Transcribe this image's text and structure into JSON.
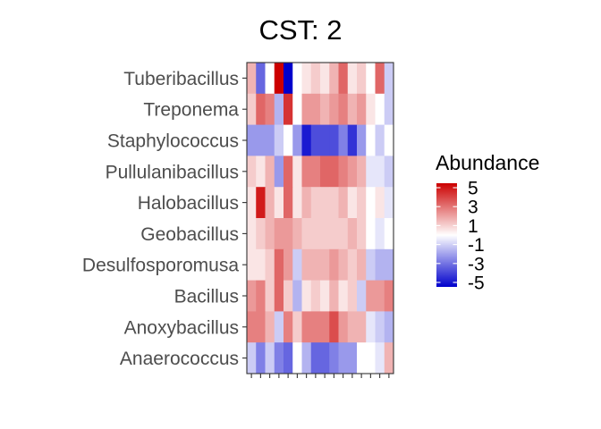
{
  "chart_data": {
    "type": "heatmap",
    "title": "CST: 2",
    "xlabel": "",
    "ylabel": "",
    "rows": [
      "Tuberibacillus",
      "Treponema",
      "Staphylococcus",
      "Pullulanibacillus",
      "Halobacillus",
      "Geobacillus",
      "Desulfosporomusa",
      "Bacillus",
      "Anoxybacillus",
      "Anaerococcus"
    ],
    "n_columns": 16,
    "x_tick_labels_shown": false,
    "values": [
      [
        1.5,
        -3,
        0,
        5,
        -5,
        0,
        0.5,
        1,
        0.5,
        1.5,
        3,
        0.5,
        1,
        0,
        3,
        -1
      ],
      [
        1,
        3,
        2.5,
        -1.5,
        4,
        0,
        2,
        2,
        1.5,
        2,
        2.5,
        1.5,
        2,
        0.5,
        0,
        -1
      ],
      [
        -2,
        -2,
        -2,
        -1,
        0,
        -2,
        -4.5,
        -3.5,
        -3.5,
        -3.5,
        -2.5,
        -4,
        -2,
        0,
        -1,
        0
      ],
      [
        1,
        0.5,
        1.5,
        -2,
        3,
        0.5,
        2.5,
        2.5,
        3,
        3,
        2.5,
        2,
        1.5,
        -0.5,
        -0.5,
        -1
      ],
      [
        0.5,
        4.5,
        1.5,
        0.5,
        3,
        0.5,
        1.5,
        1,
        1,
        1,
        1.5,
        0.5,
        1,
        0,
        0.5,
        -0.5
      ],
      [
        0.5,
        1,
        1.5,
        2,
        2,
        1.5,
        1,
        1,
        1,
        1,
        1,
        1.5,
        1,
        0,
        -0.5,
        0
      ],
      [
        0.5,
        0.5,
        1,
        3,
        2,
        -1,
        1.5,
        1.5,
        1.5,
        2,
        1.5,
        1,
        1.5,
        -1,
        -1.5,
        -1.5
      ],
      [
        2,
        2.5,
        1,
        3,
        1,
        -1.5,
        0.5,
        1,
        0.5,
        1.5,
        0.5,
        1,
        -1,
        2,
        2,
        2.5
      ],
      [
        2.5,
        2.5,
        1.5,
        -1,
        2.5,
        1,
        2.5,
        2.5,
        2.5,
        3.5,
        2,
        1.5,
        1.5,
        -0.5,
        -1,
        -1.5
      ],
      [
        -1,
        -2.5,
        -1,
        -2.5,
        -3,
        0,
        -1.5,
        -3,
        -3,
        -2.5,
        -2,
        -2,
        0,
        0,
        -0.5,
        1.5
      ]
    ],
    "legend": {
      "title": "Abundance",
      "labels": [
        "5",
        "3",
        "1",
        "-1",
        "-3",
        "-5"
      ],
      "ticks": [
        5,
        3,
        1,
        -1,
        -3,
        -5
      ],
      "range": [
        -5,
        5
      ],
      "position": "right"
    },
    "colors": {
      "low": "#0000cc",
      "mid": "#ffffff",
      "high": "#cc0000"
    },
    "grid": false
  }
}
